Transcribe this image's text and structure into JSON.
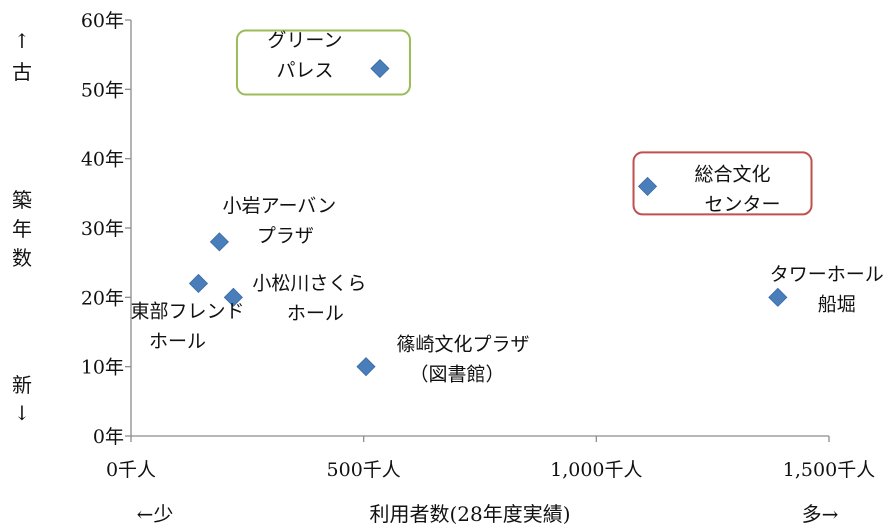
{
  "chart_data": {
    "type": "scatter",
    "xlim": [
      0,
      1500
    ],
    "ylim": [
      0,
      60
    ],
    "x_ticks": [
      "0千人",
      "500千人",
      "1,000千人",
      "1,500千人"
    ],
    "y_ticks": [
      "0年",
      "10年",
      "20年",
      "30年",
      "40年",
      "50年",
      "60年"
    ],
    "xlabel": "利用者数(28年度実績)",
    "x_left_note": "←少",
    "x_right_note": "多→",
    "ylabel": [
      "築",
      "年",
      "数"
    ],
    "y_top_note": [
      "↑",
      "古"
    ],
    "y_bottom_note": [
      "新",
      "↓"
    ],
    "marker_color": "#4a7ebb",
    "grid": false,
    "points": [
      {
        "x": 535,
        "y": 53,
        "label": [
          "グリーン",
          "パレス"
        ],
        "box_color": "#9bbb59"
      },
      {
        "x": 1110,
        "y": 36,
        "label": [
          "総合文化",
          "センター"
        ],
        "box_color": "#c0504d"
      },
      {
        "x": 190,
        "y": 28,
        "label": [
          "小岩アーバン",
          "プラザ"
        ]
      },
      {
        "x": 145,
        "y": 22,
        "label": [
          "東部フレンド",
          "ホール"
        ]
      },
      {
        "x": 220,
        "y": 20,
        "label": [
          "小松川さくら",
          "ホール"
        ]
      },
      {
        "x": 1390,
        "y": 20,
        "label": [
          "タワーホール",
          "船堀"
        ]
      },
      {
        "x": 505,
        "y": 10,
        "label": [
          "篠崎文化プラザ",
          "（図書館）"
        ]
      }
    ]
  }
}
